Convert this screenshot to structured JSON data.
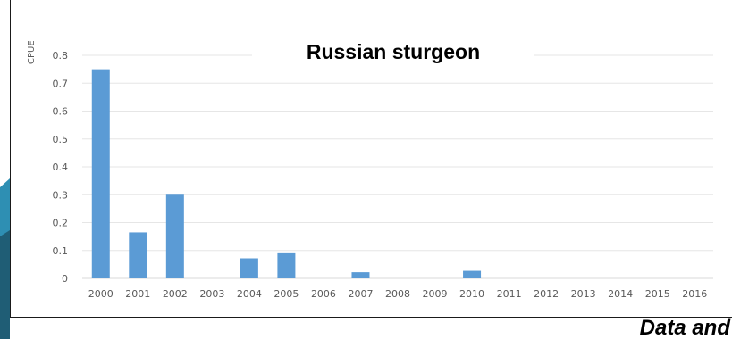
{
  "footer_text": "Data and",
  "colors": {
    "bar": "#5b9bd5",
    "grid": "#e6e6e6",
    "teal_dark": "#1f5d75",
    "teal": "#2e8fb3"
  },
  "chart_data": {
    "type": "bar",
    "title": "Russian sturgeon",
    "xlabel": "",
    "ylabel": "CPUE",
    "ylim": [
      0,
      0.8
    ],
    "yticks": [
      "0",
      "0.1",
      "0.2",
      "0.3",
      "0.4",
      "0.5",
      "0.6",
      "0.7",
      "0.8"
    ],
    "grid": true,
    "categories": [
      "2000",
      "2001",
      "2002",
      "2003",
      "2004",
      "2005",
      "2006",
      "2007",
      "2008",
      "2009",
      "2010",
      "2011",
      "2012",
      "2013",
      "2014",
      "2015",
      "2016"
    ],
    "values": [
      0.75,
      0.165,
      0.3,
      0,
      0.072,
      0.09,
      0,
      0.022,
      0,
      0,
      0.027,
      0,
      0,
      0,
      0,
      0,
      0
    ]
  }
}
